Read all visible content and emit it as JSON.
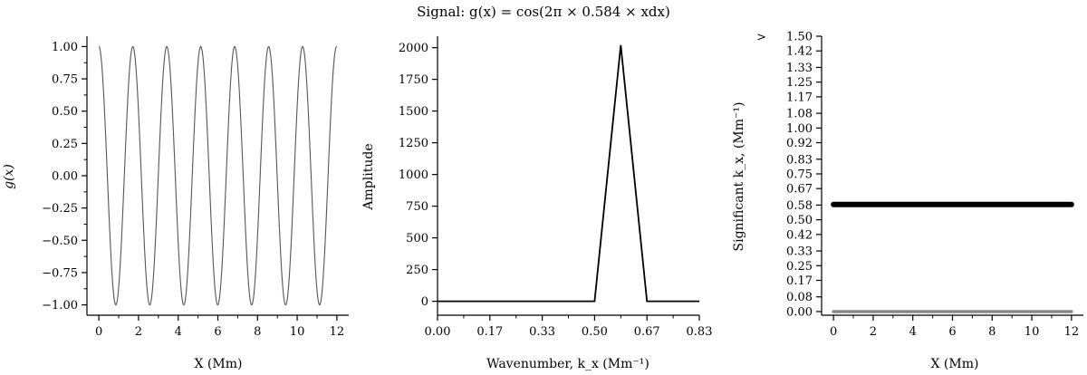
{
  "figure": {
    "title": "Signal: g(x) = cos(2π × 0.584 × xdx)"
  },
  "chart_data": [
    {
      "type": "line",
      "function": "cos(2*pi*0.584*x)",
      "frequency": 0.584,
      "x_range": [
        0,
        12
      ],
      "xlabel": "X (Mm)",
      "ylabel": "g(x)",
      "xlim": [
        -0.6,
        12.6
      ],
      "ylim": [
        -1.08,
        1.08
      ],
      "xticks": [
        "0",
        "2",
        "4",
        "6",
        "8",
        "10",
        "12"
      ],
      "yticks": [
        "1.00",
        "0.75",
        "0.50",
        "0.25",
        "0.00",
        "−0.25",
        "−0.50",
        "−0.75",
        "−1.00"
      ],
      "color": "#555555"
    },
    {
      "type": "line",
      "x": [
        0,
        0.0833,
        0.1667,
        0.25,
        0.3333,
        0.4167,
        0.5,
        0.5833,
        0.6667,
        0.75,
        0.8333
      ],
      "y": [
        0,
        0,
        0,
        0,
        0,
        0,
        0,
        2020,
        0,
        0,
        0
      ],
      "xlabel": "Wavenumber, k_x (Mm⁻¹)",
      "ylabel": "Amplitude",
      "xlim": [
        0,
        0.8333
      ],
      "ylim": [
        -110,
        2090
      ],
      "xticks": [
        "0.00",
        "0.17",
        "0.33",
        "0.50",
        "0.67",
        "0.83"
      ],
      "yticks": [
        "0",
        "250",
        "500",
        "750",
        "1000",
        "1250",
        "1500",
        "1750",
        "2000"
      ],
      "color": "#000000"
    },
    {
      "type": "line",
      "series": [
        {
          "x": [
            0,
            12
          ],
          "y": [
            0.5833,
            0.5833
          ],
          "color": "#000000"
        },
        {
          "x": [
            0,
            12
          ],
          "y": [
            0.0,
            0.0
          ],
          "color": "#888888"
        }
      ],
      "xlabel": "X (Mm)",
      "ylabel": "Significant k_x, (Mm⁻¹)",
      "xlim": [
        -0.6,
        12.6
      ],
      "ylim": [
        -0.02,
        1.5
      ],
      "xticks": [
        "0",
        "2",
        "4",
        "6",
        "8",
        "10",
        "12"
      ],
      "yticks": [
        "1.50",
        "1.42",
        "1.33",
        "1.25",
        "1.17",
        "1.08",
        "1.00",
        "0.92",
        "0.83",
        "0.75",
        "0.67",
        "0.58",
        "0.50",
        "0.42",
        "0.33",
        "0.25",
        "0.17",
        "0.08",
        "0.00"
      ],
      "top_label": ">"
    }
  ]
}
